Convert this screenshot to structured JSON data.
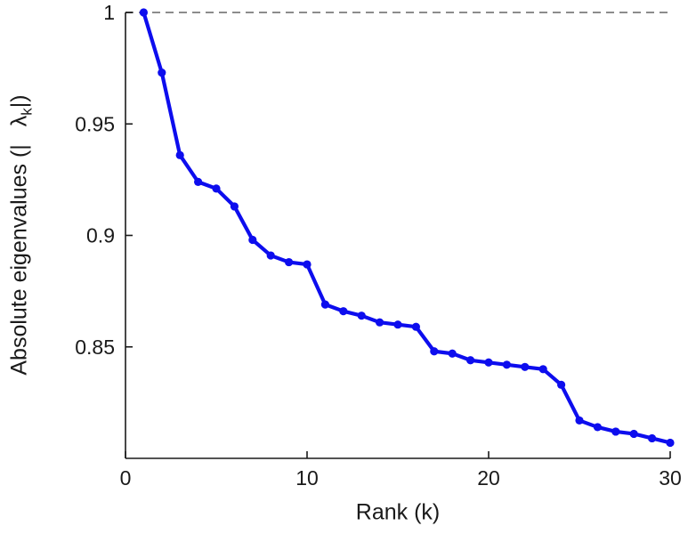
{
  "figure": {
    "background": "#ffffff",
    "series_color": "#0d0dee",
    "reference_line_color": "#8c8c8c",
    "axis_color": "#1a1a1a",
    "text_color": "#1a1a1a"
  },
  "labels": {
    "ylabel_prefix": "Absolute eigenvalues (|",
    "ylabel_lambda": "λ",
    "ylabel_sub": "k",
    "ylabel_suffix": "|)",
    "xlabel": "Rank (k)"
  },
  "chart_data": {
    "type": "line",
    "title": "",
    "xlabel": "Rank (k)",
    "ylabel": "Absolute eigenvalues (|λ_k|)",
    "marker": "circle",
    "grid": false,
    "legend_position": "none",
    "xlim": [
      0,
      30
    ],
    "ylim": [
      0.8,
      1.0
    ],
    "xticks": [
      0,
      10,
      20,
      30
    ],
    "xtick_labels": [
      "0",
      "10",
      "20",
      "30"
    ],
    "yticks": [
      0.85,
      0.9,
      0.95,
      1
    ],
    "ytick_labels": [
      "0.85",
      "0.9",
      "0.95",
      "1"
    ],
    "reference_line": {
      "y": 1.0,
      "style": "dashed"
    },
    "x": [
      1,
      2,
      3,
      4,
      5,
      6,
      7,
      8,
      9,
      10,
      11,
      12,
      13,
      14,
      15,
      16,
      17,
      18,
      19,
      20,
      21,
      22,
      23,
      24,
      25,
      26,
      27,
      28,
      29,
      30
    ],
    "y": [
      1.0,
      0.973,
      0.936,
      0.924,
      0.921,
      0.913,
      0.898,
      0.891,
      0.888,
      0.887,
      0.869,
      0.866,
      0.864,
      0.861,
      0.86,
      0.859,
      0.848,
      0.847,
      0.844,
      0.843,
      0.842,
      0.841,
      0.84,
      0.833,
      0.817,
      0.814,
      0.812,
      0.811,
      0.809,
      0.807
    ]
  }
}
